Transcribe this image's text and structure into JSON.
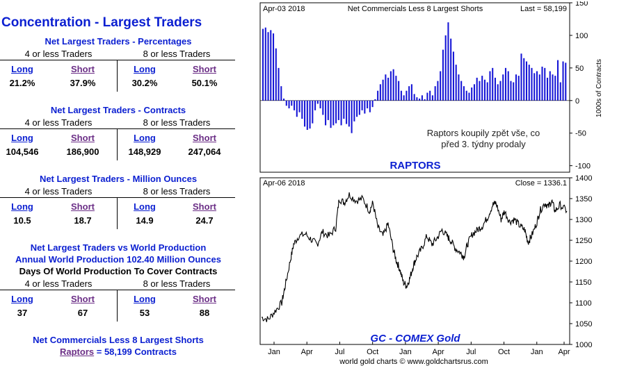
{
  "left": {
    "title": "Concentration - Largest Traders",
    "group_left": "4 or less Traders",
    "group_right": "8 or less Traders",
    "long_label": "Long",
    "short_label": "Short",
    "sections": [
      {
        "title": "Net Largest Traders - Percentages",
        "values": [
          "21.2%",
          "37.9%",
          "30.2%",
          "50.1%"
        ]
      },
      {
        "title": "Net Largest Traders - Contracts",
        "values": [
          "104,546",
          "186,900",
          "148,929",
          "247,064"
        ]
      },
      {
        "title": "Net Largest Traders - Million Ounces",
        "values": [
          "10.5",
          "18.7",
          "14.9",
          "24.7"
        ]
      },
      {
        "title_lines": [
          "Net Largest Traders vs World Production",
          "Annual World Production 102.40 Million Ounces",
          "Days Of World Production To Cover Contracts"
        ],
        "values": [
          "37",
          "67",
          "53",
          "88"
        ]
      }
    ],
    "footer_line1": "Net Commercials Less 8 Largest Shorts",
    "footer_link": "Raptors",
    "footer_rest": " = 58,199 Contracts"
  },
  "chart_data": [
    {
      "type": "bar",
      "title": "Net Commercials Less 8 Largest Shorts",
      "date_label": "Apr-03 2018",
      "last_label": "Last = 58,199",
      "ylabel": "1000s of Contracts",
      "ylim": [
        -110,
        150
      ],
      "yticks": [
        150,
        100,
        50,
        0,
        -50,
        -100
      ],
      "annotation": [
        "Raptors koupily zpět vše, co",
        "před 3. týdny prodaly"
      ],
      "label": "RAPTORS",
      "values": [
        110,
        112,
        105,
        108,
        103,
        80,
        50,
        22,
        3,
        -8,
        -12,
        -8,
        -15,
        -25,
        -18,
        -28,
        -40,
        -45,
        -43,
        -35,
        -15,
        -5,
        -12,
        -22,
        -38,
        -30,
        -42,
        -38,
        -35,
        -30,
        -38,
        -28,
        -36,
        -40,
        -50,
        -32,
        -25,
        -22,
        -15,
        -20,
        -12,
        -18,
        -10,
        2,
        15,
        25,
        32,
        40,
        35,
        45,
        48,
        38,
        30,
        15,
        8,
        15,
        22,
        25,
        10,
        5,
        3,
        8,
        2,
        12,
        15,
        8,
        22,
        30,
        45,
        78,
        100,
        120,
        95,
        75,
        55,
        40,
        30,
        22,
        15,
        12,
        20,
        25,
        35,
        30,
        38,
        32,
        28,
        45,
        50,
        35,
        25,
        30,
        40,
        50,
        45,
        30,
        28,
        40,
        38,
        72,
        65,
        60,
        55,
        50,
        42,
        45,
        40,
        52,
        50,
        35,
        45,
        40,
        38,
        62,
        28,
        60,
        58
      ],
      "label_chart": "Raptors"
    },
    {
      "type": "line",
      "title": "GC - COMEX Gold",
      "date_label": "Apr-06 2018",
      "last_label": "Close = 1336.1",
      "ylim": [
        1000,
        1400
      ],
      "yticks": [
        1400,
        1350,
        1300,
        1250,
        1200,
        1150,
        1100,
        1050,
        1000
      ],
      "x_tick_labels": [
        "Jan",
        "Apr",
        "Jul",
        "Oct",
        "Jan",
        "Apr",
        "Jul",
        "Oct",
        "Jan",
        "Apr"
      ],
      "source": "world gold charts © www.goldchartsrus.com",
      "anchors": [
        [
          0,
          1065
        ],
        [
          4,
          1060
        ],
        [
          8,
          1080
        ],
        [
          12,
          1100
        ],
        [
          14,
          1140
        ],
        [
          17,
          1200
        ],
        [
          19,
          1240
        ],
        [
          22,
          1260
        ],
        [
          26,
          1265
        ],
        [
          30,
          1250
        ],
        [
          33,
          1240
        ],
        [
          36,
          1270
        ],
        [
          40,
          1260
        ],
        [
          44,
          1280
        ],
        [
          46,
          1350
        ],
        [
          49,
          1340
        ],
        [
          52,
          1360
        ],
        [
          56,
          1345
        ],
        [
          60,
          1350
        ],
        [
          64,
          1320
        ],
        [
          66,
          1340
        ],
        [
          69,
          1280
        ],
        [
          72,
          1260
        ],
        [
          75,
          1290
        ],
        [
          78,
          1230
        ],
        [
          80,
          1200
        ],
        [
          82,
          1180
        ],
        [
          84,
          1150
        ],
        [
          86,
          1140
        ],
        [
          88,
          1160
        ],
        [
          90,
          1190
        ],
        [
          92,
          1210
        ],
        [
          95,
          1230
        ],
        [
          98,
          1260
        ],
        [
          101,
          1240
        ],
        [
          104,
          1255
        ],
        [
          107,
          1275
        ],
        [
          110,
          1260
        ],
        [
          112,
          1250
        ],
        [
          115,
          1230
        ],
        [
          118,
          1220
        ],
        [
          120,
          1210
        ],
        [
          122,
          1240
        ],
        [
          125,
          1265
        ],
        [
          128,
          1275
        ],
        [
          131,
          1285
        ],
        [
          134,
          1305
        ],
        [
          137,
          1335
        ],
        [
          139,
          1340
        ],
        [
          142,
          1300
        ],
        [
          144,
          1320
        ],
        [
          147,
          1295
        ],
        [
          150,
          1300
        ],
        [
          153,
          1285
        ],
        [
          156,
          1275
        ],
        [
          158,
          1245
        ],
        [
          160,
          1260
        ],
        [
          163,
          1290
        ],
        [
          165,
          1320
        ],
        [
          168,
          1340
        ],
        [
          170,
          1330
        ],
        [
          172,
          1345
        ],
        [
          174,
          1320
        ],
        [
          177,
          1335
        ],
        [
          181,
          1320
        ]
      ]
    }
  ]
}
